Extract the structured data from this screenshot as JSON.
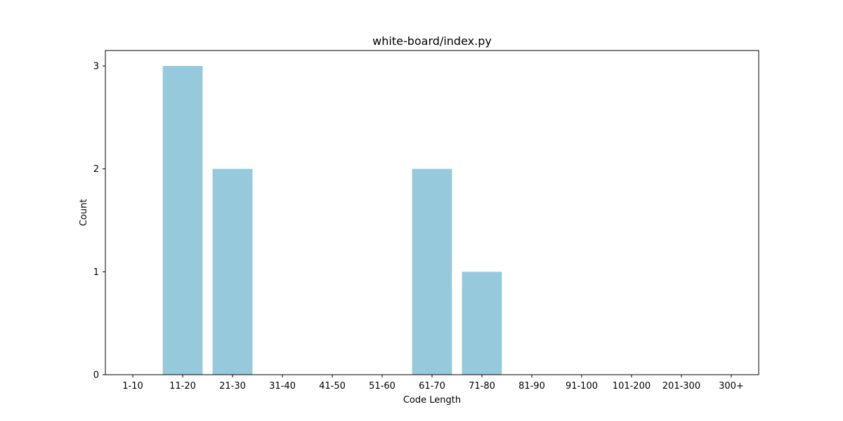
{
  "chart_data": {
    "type": "bar",
    "title": "white-board/index.py",
    "xlabel": "Code Length",
    "ylabel": "Count",
    "categories": [
      "1-10",
      "11-20",
      "21-30",
      "31-40",
      "41-50",
      "51-60",
      "61-70",
      "71-80",
      "81-90",
      "91-100",
      "101-200",
      "201-300",
      "300+"
    ],
    "values": [
      0,
      3,
      2,
      0,
      0,
      0,
      2,
      1,
      0,
      0,
      0,
      0,
      0
    ],
    "yticks": [
      "0",
      "1",
      "2",
      "3"
    ],
    "ylim": [
      0,
      3.15
    ],
    "grid": false,
    "legend": "none",
    "bar_color": "#96c9dc"
  }
}
